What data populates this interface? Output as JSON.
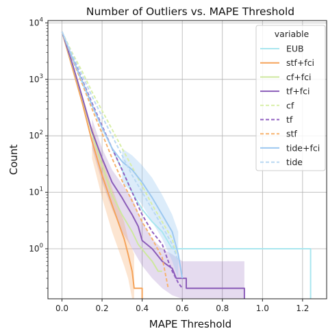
{
  "chart_data": {
    "type": "line",
    "title": "Number of Outliers vs. MAPE Threshold",
    "xlabel": "MAPE Threshold",
    "ylabel": "Count",
    "xlim": [
      -0.07,
      1.32
    ],
    "ylim": [
      0.13,
      11000
    ],
    "yscale": "log",
    "grid": true,
    "x_ticks": [
      "0.0",
      "0.2",
      "0.4",
      "0.6",
      "0.8",
      "1.0",
      "1.2"
    ],
    "x_tick_values": [
      0.0,
      0.2,
      0.4,
      0.6,
      0.8,
      1.0,
      1.2
    ],
    "y_ticks": [
      "10",
      "10",
      "10",
      "10",
      "10"
    ],
    "y_tick_exponents": [
      "0",
      "1",
      "2",
      "3",
      "4"
    ],
    "y_tick_values": [
      1,
      10,
      100,
      1000,
      10000
    ],
    "legend": {
      "title": "variable",
      "position": "top-right"
    },
    "series": [
      {
        "name": "EUB",
        "color": "#a8e6ef",
        "dash": "solid",
        "x": [
          0.0,
          0.05,
          0.1,
          0.15,
          0.2,
          0.25,
          0.3,
          0.35,
          0.4,
          0.45,
          0.5,
          0.55,
          0.6,
          1.24,
          1.24
        ],
        "y": [
          7000,
          2500,
          900,
          350,
          140,
          60,
          25,
          10,
          5,
          3,
          2,
          1,
          1,
          1,
          0.13
        ]
      },
      {
        "name": "stf+fci",
        "color": "#f5a35a",
        "dash": "solid",
        "x": [
          0.0,
          0.05,
          0.1,
          0.15,
          0.2,
          0.25,
          0.28,
          0.31,
          0.33,
          0.35,
          0.36,
          0.4,
          0.4
        ],
        "y": [
          7000,
          1700,
          400,
          80,
          20,
          6,
          3,
          1.5,
          0.8,
          0.4,
          0.2,
          0.2,
          0.13
        ]
      },
      {
        "name": "cf+fci",
        "color": "#cde89e",
        "dash": "solid",
        "x": [
          0.0,
          0.05,
          0.1,
          0.15,
          0.2,
          0.25,
          0.3,
          0.35,
          0.38,
          0.42,
          0.45,
          0.48,
          0.5
        ],
        "y": [
          7000,
          1900,
          480,
          110,
          30,
          9,
          4,
          2,
          1.2,
          0.8,
          0.6,
          0.4,
          0.4
        ]
      },
      {
        "name": "tf+fci",
        "color": "#8a5cb8",
        "dash": "solid",
        "x": [
          0.0,
          0.05,
          0.1,
          0.15,
          0.2,
          0.25,
          0.3,
          0.32,
          0.35,
          0.38,
          0.4,
          0.45,
          0.5,
          0.53,
          0.55,
          0.57,
          0.6,
          0.62,
          0.62,
          0.91,
          0.91
        ],
        "y": [
          7000,
          2000,
          500,
          120,
          40,
          15,
          8,
          6,
          4,
          2.5,
          1.4,
          1.0,
          0.6,
          0.5,
          0.45,
          0.3,
          0.3,
          0.3,
          0.2,
          0.2,
          0.13
        ]
      },
      {
        "name": "cf",
        "color": "#d9efa8",
        "dash": "dashed",
        "x": [
          0.0,
          0.05,
          0.1,
          0.15,
          0.2,
          0.25,
          0.3,
          0.35,
          0.4,
          0.45,
          0.5,
          0.55,
          0.57
        ],
        "y": [
          7000,
          3000,
          1400,
          600,
          280,
          130,
          60,
          28,
          13,
          6,
          3,
          1.5,
          0.8
        ]
      },
      {
        "name": "tf",
        "color": "#8f5ec0",
        "dash": "dashed",
        "x": [
          0.0,
          0.05,
          0.1,
          0.15,
          0.2,
          0.25,
          0.3,
          0.35,
          0.4,
          0.45,
          0.5,
          0.53,
          0.55,
          0.58,
          0.6
        ],
        "y": [
          7000,
          2600,
          1000,
          380,
          150,
          60,
          25,
          10,
          4,
          2,
          1.2,
          0.6,
          0.4,
          0.25,
          0.2
        ]
      },
      {
        "name": "stf",
        "color": "#f7b36e",
        "dash": "dashed",
        "x": [
          0.0,
          0.05,
          0.1,
          0.15,
          0.2,
          0.25,
          0.3,
          0.35,
          0.4,
          0.45,
          0.5,
          0.52,
          0.53
        ],
        "y": [
          7000,
          2400,
          850,
          300,
          110,
          40,
          16,
          7,
          3,
          1.5,
          0.7,
          0.3,
          0.2
        ]
      },
      {
        "name": "tide+fci",
        "color": "#9cc8f0",
        "dash": "solid",
        "x": [
          0.0,
          0.05,
          0.1,
          0.15,
          0.2,
          0.25,
          0.3,
          0.35,
          0.4,
          0.45,
          0.5,
          0.55,
          0.58,
          0.6
        ],
        "y": [
          7000,
          2500,
          950,
          350,
          140,
          60,
          35,
          25,
          15,
          8,
          4,
          2,
          0.8,
          0.3
        ]
      },
      {
        "name": "tide",
        "color": "#b8d8f2",
        "dash": "dashed",
        "x": [
          0.0,
          0.05,
          0.1,
          0.15,
          0.2,
          0.25,
          0.3,
          0.35,
          0.4,
          0.45,
          0.5,
          0.55,
          0.58
        ],
        "y": [
          7000,
          2800,
          1200,
          500,
          220,
          100,
          45,
          20,
          10,
          5,
          2.5,
          1.2,
          0.6
        ]
      }
    ],
    "bands": [
      {
        "series": "tf+fci",
        "color": "#8a5cb8",
        "opacity": 0.22,
        "x": [
          0.15,
          0.2,
          0.25,
          0.3,
          0.35,
          0.4,
          0.45,
          0.5,
          0.55,
          0.6,
          0.62,
          0.62,
          0.91,
          0.91
        ],
        "lo": [
          60,
          15,
          5,
          2,
          1,
          0.5,
          0.3,
          0.2,
          0.15,
          0.13,
          0.13,
          0.13,
          0.13,
          0.13
        ],
        "hi": [
          200,
          60,
          25,
          14,
          8,
          3,
          1.5,
          1.0,
          0.8,
          0.6,
          0.6,
          0.6,
          0.6,
          0.6
        ]
      },
      {
        "series": "stf+fci",
        "color": "#f5a35a",
        "opacity": 0.28,
        "x": [
          0.15,
          0.2,
          0.25,
          0.28,
          0.31,
          0.33,
          0.35,
          0.36
        ],
        "lo": [
          40,
          8,
          2,
          1,
          0.5,
          0.3,
          0.13,
          0.13
        ],
        "hi": [
          150,
          40,
          12,
          6,
          3,
          1.5,
          1.0,
          0.8
        ]
      },
      {
        "series": "tide+fci",
        "color": "#9cc8f0",
        "opacity": 0.35,
        "x": [
          0.3,
          0.35,
          0.4,
          0.45,
          0.5,
          0.55,
          0.58
        ],
        "lo": [
          15,
          10,
          6,
          3,
          1.5,
          0.6,
          0.3
        ],
        "hi": [
          60,
          45,
          30,
          18,
          9,
          4,
          2
        ]
      }
    ]
  }
}
